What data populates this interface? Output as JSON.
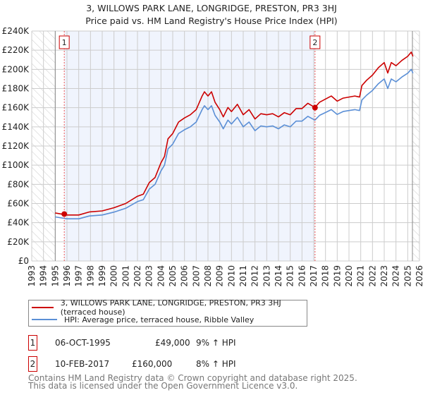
{
  "chart_data": {
    "type": "line",
    "title": "3, WILLOWS PARK LANE, LONGRIDGE, PRESTON, PR3 3HJ",
    "subtitle": "Price paid vs. HM Land Registry's House Price Index (HPI)",
    "xlim": [
      1993,
      2026
    ],
    "ylim": [
      0,
      240000
    ],
    "x_ticks": [
      "1993",
      "1994",
      "1995",
      "1996",
      "1997",
      "1998",
      "1999",
      "2000",
      "2001",
      "2002",
      "2003",
      "2004",
      "2005",
      "2006",
      "2007",
      "2008",
      "2009",
      "2010",
      "2011",
      "2012",
      "2013",
      "2014",
      "2015",
      "2016",
      "2017",
      "2018",
      "2019",
      "2020",
      "2021",
      "2022",
      "2023",
      "2024",
      "2025",
      "2026"
    ],
    "y_ticks": [
      {
        "v": 0,
        "label": "£0"
      },
      {
        "v": 20000,
        "label": "£20K"
      },
      {
        "v": 40000,
        "label": "£40K"
      },
      {
        "v": 60000,
        "label": "£60K"
      },
      {
        "v": 80000,
        "label": "£80K"
      },
      {
        "v": 100000,
        "label": "£100K"
      },
      {
        "v": 120000,
        "label": "£120K"
      },
      {
        "v": 140000,
        "label": "£140K"
      },
      {
        "v": 160000,
        "label": "£160K"
      },
      {
        "v": 180000,
        "label": "£180K"
      },
      {
        "v": 200000,
        "label": "£200K"
      },
      {
        "v": 220000,
        "label": "£220K"
      },
      {
        "v": 240000,
        "label": "£240K"
      }
    ],
    "grid": true,
    "data_start": 1995.0,
    "data_end": 2025.4,
    "x": [
      1995.0,
      1996,
      1997,
      1997.9,
      1999,
      2000,
      2001,
      2002,
      2002.5,
      2003,
      2003.5,
      2004,
      2004.3,
      2004.6,
      2005,
      2005.5,
      2006,
      2006.5,
      2007,
      2007.5,
      2007.7,
      2008,
      2008.3,
      2008.6,
      2009,
      2009.3,
      2009.7,
      2010,
      2010.5,
      2011,
      2011.5,
      2012,
      2012.5,
      2013,
      2013.5,
      2014,
      2014.5,
      2015,
      2015.5,
      2016,
      2016.5,
      2017.1,
      2017.5,
      2018,
      2018.5,
      2019,
      2019.5,
      2020,
      2020.5,
      2020.9,
      2021.1,
      2021.5,
      2022,
      2022.5,
      2023,
      2023.3,
      2023.6,
      2024,
      2024.5,
      2025,
      2025.3,
      2025.45
    ],
    "series": [
      {
        "name": "3, WILLOWS PARK LANE, LONGRIDGE, PRESTON, PR3 3HJ (terraced house)",
        "color": "#cc0000",
        "values": [
          50100,
          48000,
          48000,
          51200,
          52300,
          55600,
          60000,
          67600,
          69800,
          81800,
          87200,
          102500,
          109000,
          127500,
          133000,
          145000,
          149300,
          152600,
          158000,
          172200,
          176600,
          172200,
          176600,
          165700,
          158000,
          150400,
          160200,
          155900,
          163500,
          152600,
          158000,
          148200,
          153700,
          152600,
          153700,
          150400,
          154800,
          152600,
          159100,
          159100,
          164600,
          160200,
          165700,
          169000,
          172200,
          166800,
          170000,
          171100,
          172200,
          171100,
          183100,
          188600,
          194000,
          201700,
          207100,
          196200,
          207100,
          203800,
          209300,
          213600,
          218000,
          213600
        ]
      },
      {
        "name": "HPI: Average price, terraced house, Ribble Valley",
        "color": "#5b8fd6",
        "values": [
          46000,
          44000,
          44000,
          47000,
          48000,
          51000,
          55000,
          62000,
          64000,
          75000,
          80000,
          94000,
          100000,
          117000,
          122000,
          133000,
          137000,
          140000,
          145000,
          158000,
          162000,
          158000,
          162000,
          152000,
          145000,
          138000,
          147000,
          143000,
          150000,
          140000,
          145000,
          136000,
          141000,
          140000,
          141000,
          138000,
          142000,
          140000,
          146000,
          146000,
          151000,
          147000,
          152000,
          155000,
          158000,
          153000,
          156000,
          157000,
          158000,
          157000,
          168000,
          173000,
          178000,
          185000,
          190000,
          180000,
          190000,
          187000,
          192000,
          196000,
          200000,
          196000
        ]
      }
    ],
    "sales": [
      {
        "id": "1",
        "x": 1995.77,
        "y": 49000,
        "date": "06-OCT-1995",
        "price": "£49,000",
        "hpi": "9% ↑ HPI"
      },
      {
        "id": "2",
        "x": 2017.11,
        "y": 160000,
        "date": "10-FEB-2017",
        "price": "£160,000",
        "hpi": "8% ↑ HPI"
      }
    ],
    "legend_position": "below"
  },
  "footer": {
    "line1": "Contains HM Land Registry data © Crown copyright and database right 2025.",
    "line2": "This data is licensed under the Open Government Licence v3.0."
  }
}
